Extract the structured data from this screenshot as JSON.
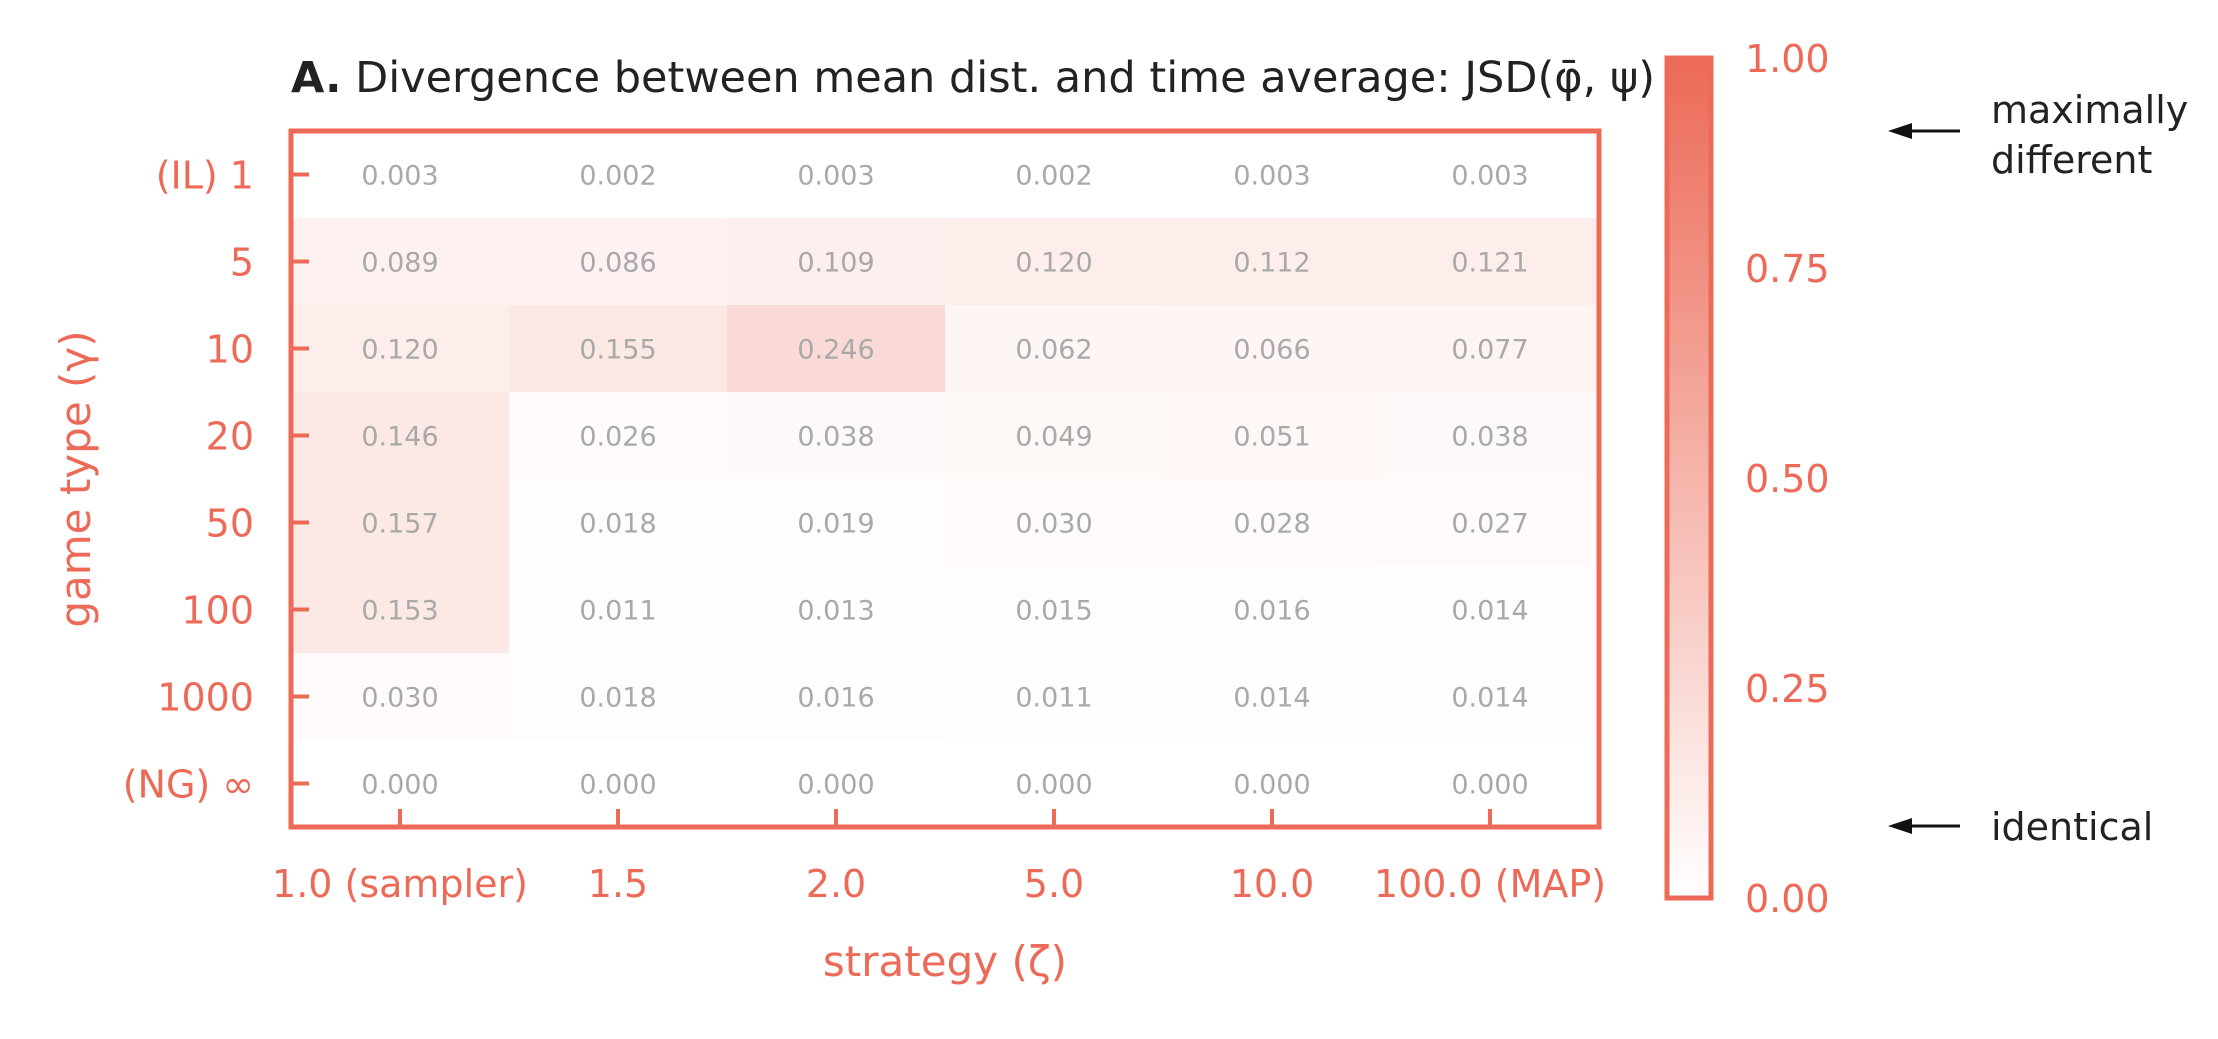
{
  "chart_data": {
    "type": "heatmap",
    "title_prefix": "A.",
    "title": "Divergence between mean dist. and time average: JSD(φ̄, ψ)",
    "xlabel": "strategy (ζ)",
    "ylabel": "game type (γ)",
    "x_categories": [
      "1.0 (sampler)",
      "1.5",
      "2.0",
      "5.0",
      "10.0",
      "100.0 (MAP)"
    ],
    "y_categories": [
      "(IL) 1",
      "5",
      "10",
      "20",
      "50",
      "100",
      "1000",
      "(NG) ∞"
    ],
    "values": [
      [
        0.003,
        0.002,
        0.003,
        0.002,
        0.003,
        0.003
      ],
      [
        0.089,
        0.086,
        0.109,
        0.12,
        0.112,
        0.121
      ],
      [
        0.12,
        0.155,
        0.246,
        0.062,
        0.066,
        0.077
      ],
      [
        0.146,
        0.026,
        0.038,
        0.049,
        0.051,
        0.038
      ],
      [
        0.157,
        0.018,
        0.019,
        0.03,
        0.028,
        0.027
      ],
      [
        0.153,
        0.011,
        0.013,
        0.015,
        0.016,
        0.014
      ],
      [
        0.03,
        0.018,
        0.016,
        0.011,
        0.014,
        0.014
      ],
      [
        0.0,
        0.0,
        0.0,
        0.0,
        0.0,
        0.0
      ]
    ],
    "value_labels": [
      [
        "0.003",
        "0.002",
        "0.003",
        "0.002",
        "0.003",
        "0.003"
      ],
      [
        "0.089",
        "0.086",
        "0.109",
        "0.120",
        "0.112",
        "0.121"
      ],
      [
        "0.120",
        "0.155",
        "0.246",
        "0.062",
        "0.066",
        "0.077"
      ],
      [
        "0.146",
        "0.026",
        "0.038",
        "0.049",
        "0.051",
        "0.038"
      ],
      [
        "0.157",
        "0.018",
        "0.019",
        "0.030",
        "0.028",
        "0.027"
      ],
      [
        "0.153",
        "0.011",
        "0.013",
        "0.015",
        "0.016",
        "0.014"
      ],
      [
        "0.030",
        "0.018",
        "0.016",
        "0.011",
        "0.014",
        "0.014"
      ],
      [
        "0.000",
        "0.000",
        "0.000",
        "0.000",
        "0.000",
        "0.000"
      ]
    ],
    "colorbar": {
      "range": [
        0.0,
        1.0
      ],
      "ticks": [
        0.0,
        0.25,
        0.5,
        0.75,
        1.0
      ],
      "tick_labels": [
        "0.00",
        "0.25",
        "0.50",
        "0.75",
        "1.00"
      ],
      "annotations": [
        {
          "text_lines": [
            "maximally",
            "different"
          ],
          "value": 1.0
        },
        {
          "text_lines": [
            "identical"
          ],
          "value": 0.0
        }
      ]
    },
    "colors": {
      "accent": "#ec6a57",
      "cell_max": "#ec6a57",
      "cell_min": "#ffffff",
      "value_text": "#a9a9a9",
      "annotation_text": "#222222"
    },
    "grid": false,
    "legend": "colorbar-right"
  }
}
